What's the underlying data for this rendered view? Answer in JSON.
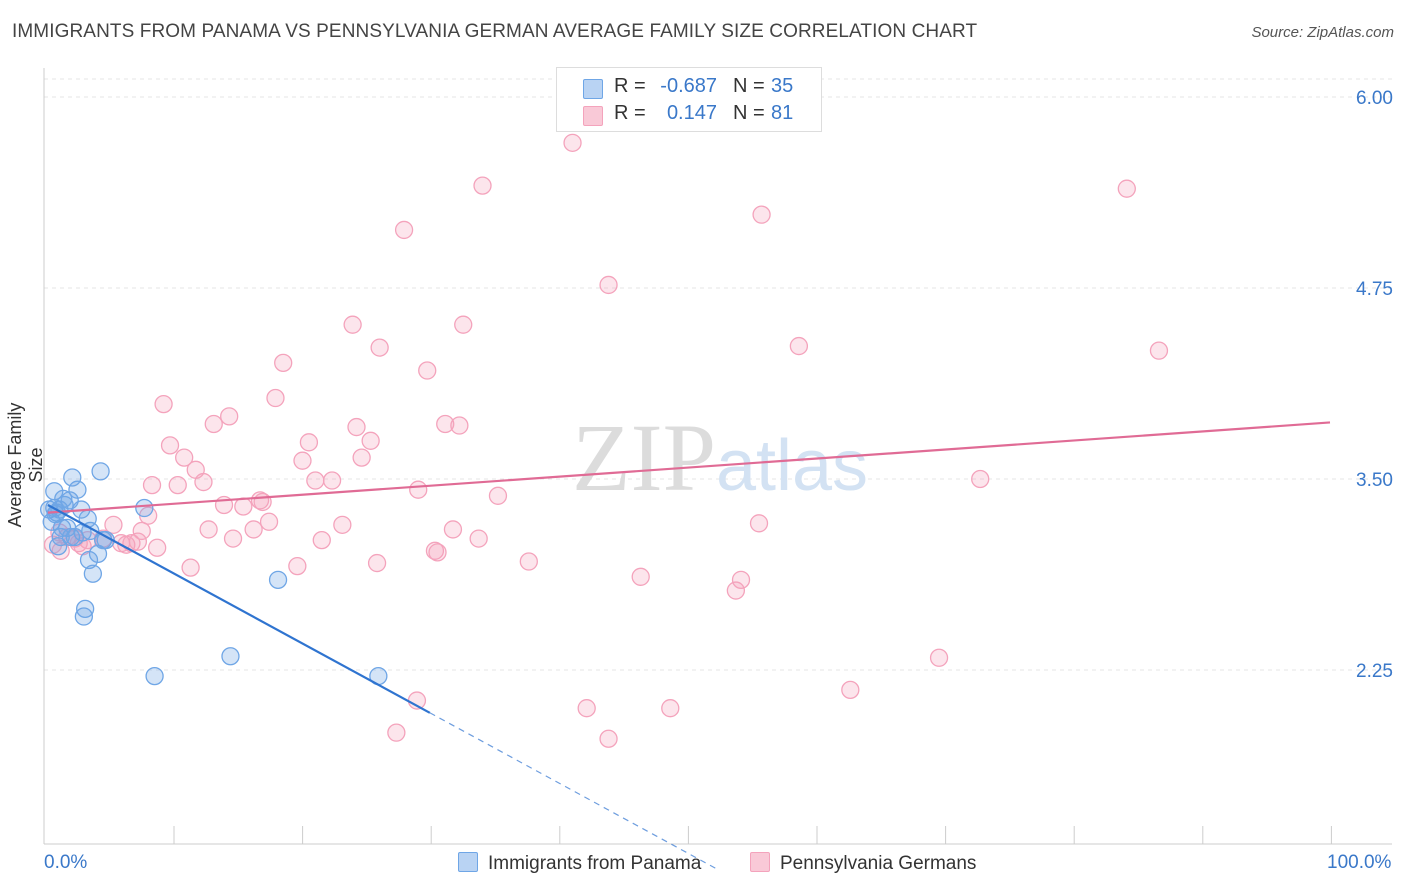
{
  "title": "IMMIGRANTS FROM PANAMA VS PENNSYLVANIA GERMAN AVERAGE FAMILY SIZE CORRELATION CHART",
  "source": "Source: ZipAtlas.com",
  "watermark": "ZIPatlas",
  "legend_top": {
    "rows": [
      {
        "r_label": "R =",
        "r_value": "-0.687",
        "n_label": "N =",
        "n_value": "35",
        "color": "#a9c8ef"
      },
      {
        "r_label": "R =",
        "r_value": "0.147",
        "n_label": "N =",
        "n_value": "81",
        "color": "#f7b8cb"
      }
    ]
  },
  "chart_data": {
    "type": "scatter",
    "ylabel": "Average Family Size",
    "xlabel": "",
    "xlim": [
      0,
      100
    ],
    "ylim": [
      1.0,
      6.1
    ],
    "x_tick_labels": [
      "0.0%",
      "100.0%"
    ],
    "y_ticks": [
      6.0,
      4.75,
      3.5,
      2.25
    ],
    "y_tick_labels": [
      "6.00",
      "4.75",
      "3.50",
      "2.25"
    ],
    "grid": true,
    "series": [
      {
        "name": "Immigrants from Panama",
        "color": "#6fa6e6",
        "line_color": "#2f74d0",
        "trend": {
          "x0": 0.3,
          "y0": 3.33,
          "x1": 30,
          "y1": 1.97,
          "dash_x1": 52.5
        },
        "points": [
          [
            0.4,
            3.3
          ],
          [
            0.6,
            3.22
          ],
          [
            0.8,
            3.31
          ],
          [
            0.9,
            3.27
          ],
          [
            0.8,
            3.42
          ],
          [
            1.0,
            3.28
          ],
          [
            1.2,
            3.3
          ],
          [
            1.3,
            3.12
          ],
          [
            1.4,
            3.18
          ],
          [
            1.5,
            3.37
          ],
          [
            1.6,
            3.33
          ],
          [
            1.8,
            3.18
          ],
          [
            2.0,
            3.36
          ],
          [
            2.1,
            3.12
          ],
          [
            2.2,
            3.51
          ],
          [
            2.4,
            3.12
          ],
          [
            2.6,
            3.43
          ],
          [
            2.9,
            3.3
          ],
          [
            3.1,
            2.6
          ],
          [
            3.2,
            2.65
          ],
          [
            3.4,
            3.24
          ],
          [
            3.5,
            2.97
          ],
          [
            3.6,
            3.16
          ],
          [
            3.8,
            2.88
          ],
          [
            4.2,
            3.01
          ],
          [
            4.4,
            3.55
          ],
          [
            4.6,
            3.1
          ],
          [
            4.8,
            3.1
          ],
          [
            7.8,
            3.31
          ],
          [
            8.6,
            2.21
          ],
          [
            14.5,
            2.34
          ],
          [
            18.2,
            2.84
          ],
          [
            26.0,
            2.21
          ],
          [
            3.0,
            3.15
          ],
          [
            1.1,
            3.06
          ]
        ]
      },
      {
        "name": "Pennsylvania Germans",
        "color": "#f4a3bc",
        "line_color": "#e06b95",
        "trend": {
          "x0": 0.3,
          "y0": 3.28,
          "x1": 100,
          "y1": 3.87
        },
        "points": [
          [
            0.7,
            3.07
          ],
          [
            1.3,
            3.03
          ],
          [
            1.8,
            3.12
          ],
          [
            2.4,
            3.11
          ],
          [
            2.7,
            3.08
          ],
          [
            3.0,
            3.06
          ],
          [
            3.4,
            3.1
          ],
          [
            4.6,
            3.11
          ],
          [
            5.4,
            3.2
          ],
          [
            6.0,
            3.08
          ],
          [
            6.4,
            3.07
          ],
          [
            6.8,
            3.08
          ],
          [
            7.3,
            3.09
          ],
          [
            7.6,
            3.16
          ],
          [
            8.1,
            3.26
          ],
          [
            8.4,
            3.46
          ],
          [
            8.8,
            3.05
          ],
          [
            9.3,
            3.99
          ],
          [
            9.8,
            3.72
          ],
          [
            10.4,
            3.46
          ],
          [
            10.9,
            3.64
          ],
          [
            11.4,
            2.92
          ],
          [
            11.8,
            3.56
          ],
          [
            12.4,
            3.48
          ],
          [
            12.8,
            3.17
          ],
          [
            13.2,
            3.86
          ],
          [
            14.0,
            3.33
          ],
          [
            14.4,
            3.91
          ],
          [
            14.7,
            3.11
          ],
          [
            15.5,
            3.32
          ],
          [
            16.3,
            3.17
          ],
          [
            16.8,
            3.36
          ],
          [
            17.0,
            3.35
          ],
          [
            17.5,
            3.22
          ],
          [
            18.0,
            4.03
          ],
          [
            18.6,
            4.26
          ],
          [
            19.7,
            2.93
          ],
          [
            20.1,
            3.62
          ],
          [
            20.6,
            3.74
          ],
          [
            21.1,
            3.49
          ],
          [
            21.6,
            3.1
          ],
          [
            22.4,
            3.49
          ],
          [
            23.2,
            3.2
          ],
          [
            24.0,
            4.51
          ],
          [
            24.3,
            3.84
          ],
          [
            24.7,
            3.64
          ],
          [
            25.4,
            3.75
          ],
          [
            25.9,
            2.95
          ],
          [
            26.1,
            4.36
          ],
          [
            27.4,
            1.84
          ],
          [
            28.0,
            5.13
          ],
          [
            29.0,
            2.05
          ],
          [
            29.1,
            3.43
          ],
          [
            29.8,
            4.21
          ],
          [
            30.4,
            3.03
          ],
          [
            30.6,
            3.02
          ],
          [
            31.2,
            3.86
          ],
          [
            31.8,
            3.17
          ],
          [
            32.3,
            3.85
          ],
          [
            32.6,
            4.51
          ],
          [
            33.8,
            3.11
          ],
          [
            34.1,
            5.42
          ],
          [
            35.3,
            3.39
          ],
          [
            37.7,
            2.96
          ],
          [
            41.1,
            5.7
          ],
          [
            42.2,
            2.0
          ],
          [
            43.9,
            4.77
          ],
          [
            43.9,
            1.8
          ],
          [
            46.4,
            2.86
          ],
          [
            48.7,
            2.0
          ],
          [
            53.8,
            2.77
          ],
          [
            54.2,
            2.84
          ],
          [
            55.6,
            3.21
          ],
          [
            55.8,
            5.23
          ],
          [
            58.7,
            4.37
          ],
          [
            62.7,
            2.12
          ],
          [
            69.6,
            2.33
          ],
          [
            72.8,
            3.5
          ],
          [
            84.2,
            5.4
          ],
          [
            86.7,
            4.34
          ],
          [
            1.2,
            3.15
          ]
        ]
      }
    ]
  },
  "bottom_legend": [
    {
      "label": "Immigrants from Panama",
      "color": "#a9c8ef"
    },
    {
      "label": "Pennsylvania Germans",
      "color": "#f7b8cb"
    }
  ]
}
